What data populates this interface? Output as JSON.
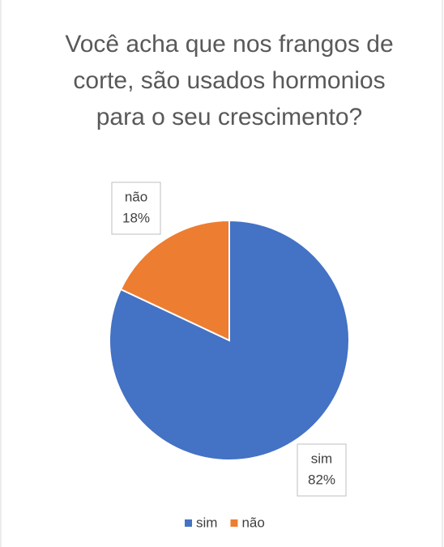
{
  "chart_data": {
    "type": "pie",
    "title": "Você acha que nos frangos de corte, são usados hormonios para o seu crescimento?",
    "categories": [
      "sim",
      "não"
    ],
    "values": [
      82,
      18
    ],
    "value_labels": [
      "82%",
      "18%"
    ],
    "colors": [
      "#4472c4",
      "#ed7d31"
    ],
    "legend": "bottom"
  }
}
